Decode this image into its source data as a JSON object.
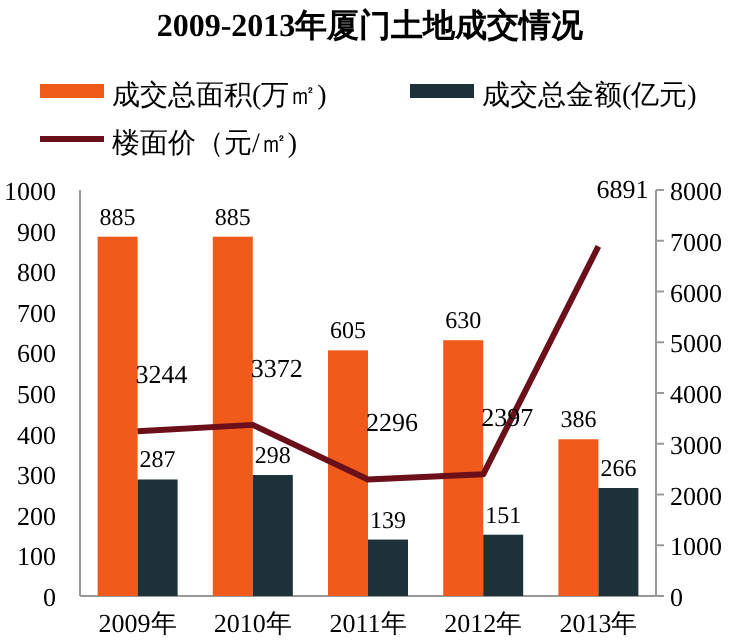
{
  "chart_data": {
    "type": "bar",
    "title": "2009-2013年厦门土地成交情况",
    "categories": [
      "2009年",
      "2010年",
      "2011年",
      "2012年",
      "2013年"
    ],
    "series": [
      {
        "name": "成交总面积(万㎡)",
        "color": "#f05a1a",
        "values": [
          885,
          885,
          605,
          630,
          386
        ]
      },
      {
        "name": "成交总金额(亿元)",
        "color": "#1d3238",
        "values": [
          287,
          298,
          139,
          151,
          266
        ]
      },
      {
        "name": "楼面价（元/㎡)",
        "color": "#6b0f1a",
        "type": "line",
        "axis": "y2",
        "values": [
          3244,
          3372,
          2296,
          2397,
          6891
        ]
      }
    ],
    "ylim": [
      0,
      1000
    ],
    "yticks": [
      0,
      100,
      200,
      300,
      400,
      500,
      600,
      700,
      800,
      900,
      1000
    ],
    "y2lim": [
      0,
      8000
    ],
    "y2ticks": [
      0,
      1000,
      2000,
      3000,
      4000,
      5000,
      6000,
      7000,
      8000
    ],
    "data_labels": true,
    "legend": "top"
  }
}
